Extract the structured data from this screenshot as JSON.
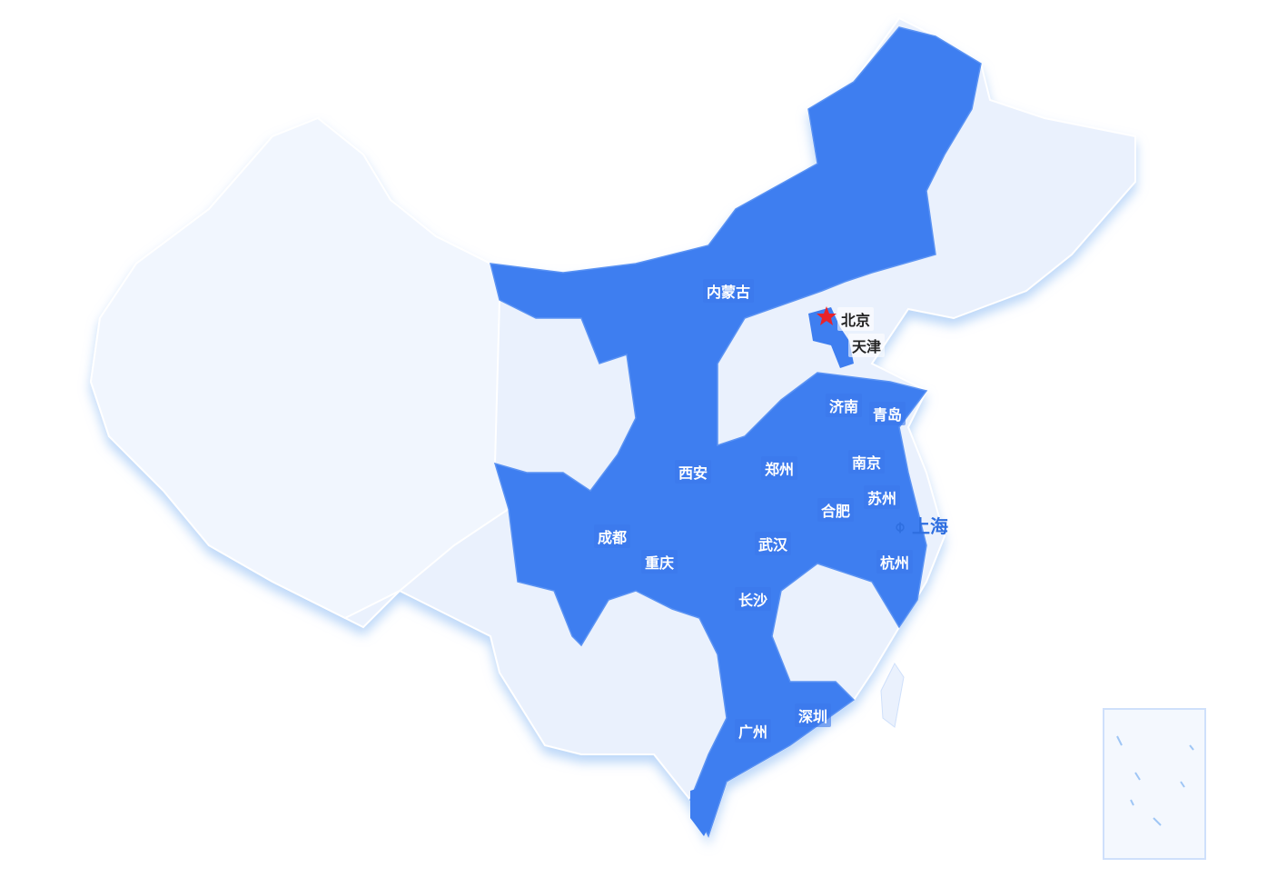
{
  "colors": {
    "country": "#eaf1fd",
    "highlight": "#3e7ef0",
    "border": "#cfe0fb",
    "capital_star": "#e8232b",
    "shanghai": "#2f6fe0"
  },
  "capital": {
    "name": "北京",
    "icon": "star-icon"
  },
  "cities": [
    {
      "key": "neimenggu",
      "name": "内蒙古"
    },
    {
      "key": "tianjin",
      "name": "天津"
    },
    {
      "key": "jinan",
      "name": "济南"
    },
    {
      "key": "qingdao",
      "name": "青岛"
    },
    {
      "key": "xian",
      "name": "西安"
    },
    {
      "key": "zhengzhou",
      "name": "郑州"
    },
    {
      "key": "nanjing",
      "name": "南京"
    },
    {
      "key": "hefei",
      "name": "合肥"
    },
    {
      "key": "suzhou",
      "name": "苏州"
    },
    {
      "key": "chengdu",
      "name": "成都"
    },
    {
      "key": "chongqing",
      "name": "重庆"
    },
    {
      "key": "wuhan",
      "name": "武汉"
    },
    {
      "key": "hangzhou",
      "name": "杭州"
    },
    {
      "key": "changsha",
      "name": "长沙"
    },
    {
      "key": "guangzhou",
      "name": "广州"
    },
    {
      "key": "shenzhen",
      "name": "深圳"
    }
  ],
  "highlight_city": {
    "name": "上海",
    "icon": "location-logo-icon"
  }
}
